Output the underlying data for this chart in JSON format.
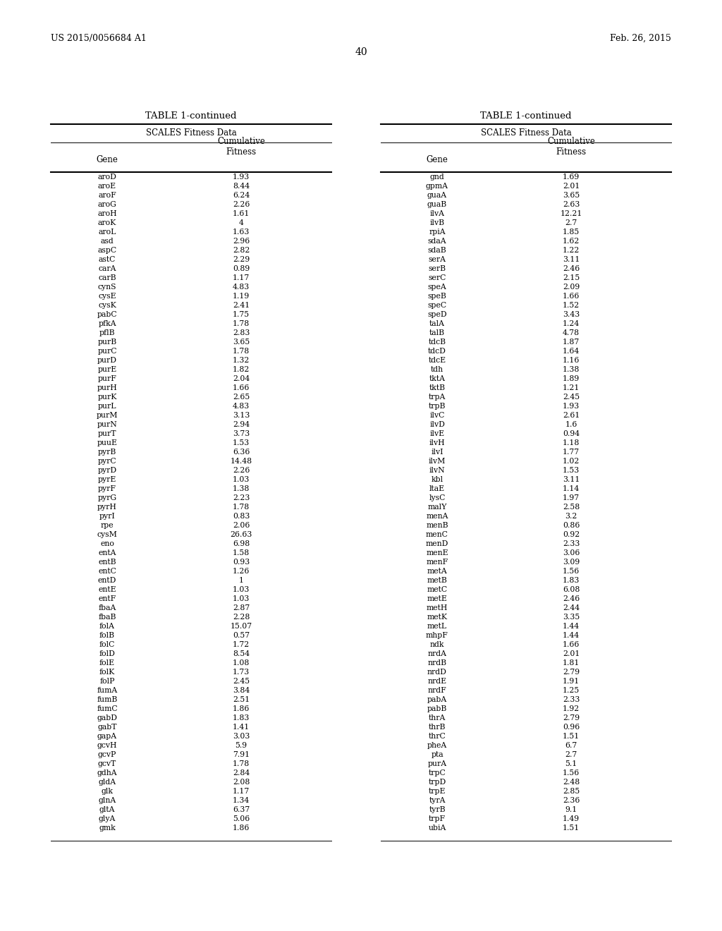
{
  "header_left": "US 2015/0056684 A1",
  "header_right": "Feb. 26, 2015",
  "page_number": "40",
  "table_title": "TABLE 1-continued",
  "table_subtitle": "SCALES Fitness Data",
  "col1_header": "Gene",
  "col2_header": "Cumulative\nFitness",
  "left_data": [
    [
      "aroD",
      "1.93"
    ],
    [
      "aroE",
      "8.44"
    ],
    [
      "aroF",
      "6.24"
    ],
    [
      "aroG",
      "2.26"
    ],
    [
      "aroH",
      "1.61"
    ],
    [
      "aroK",
      "4"
    ],
    [
      "aroL",
      "1.63"
    ],
    [
      "asd",
      "2.96"
    ],
    [
      "aspC",
      "2.82"
    ],
    [
      "astC",
      "2.29"
    ],
    [
      "carA",
      "0.89"
    ],
    [
      "carB",
      "1.17"
    ],
    [
      "cynS",
      "4.83"
    ],
    [
      "cysE",
      "1.19"
    ],
    [
      "cysK",
      "2.41"
    ],
    [
      "pabC",
      "1.75"
    ],
    [
      "pfkA",
      "1.78"
    ],
    [
      "pflB",
      "2.83"
    ],
    [
      "purB",
      "3.65"
    ],
    [
      "purC",
      "1.78"
    ],
    [
      "purD",
      "1.32"
    ],
    [
      "purE",
      "1.82"
    ],
    [
      "purF",
      "2.04"
    ],
    [
      "purH",
      "1.66"
    ],
    [
      "purK",
      "2.65"
    ],
    [
      "purL",
      "4.83"
    ],
    [
      "purM",
      "3.13"
    ],
    [
      "purN",
      "2.94"
    ],
    [
      "purT",
      "3.73"
    ],
    [
      "puuE",
      "1.53"
    ],
    [
      "pyrB",
      "6.36"
    ],
    [
      "pyrC",
      "14.48"
    ],
    [
      "pyrD",
      "2.26"
    ],
    [
      "pyrE",
      "1.03"
    ],
    [
      "pyrF",
      "1.38"
    ],
    [
      "pyrG",
      "2.23"
    ],
    [
      "pyrH",
      "1.78"
    ],
    [
      "pyrI",
      "0.83"
    ],
    [
      "rpe",
      "2.06"
    ],
    [
      "cysM",
      "26.63"
    ],
    [
      "eno",
      "6.98"
    ],
    [
      "entA",
      "1.58"
    ],
    [
      "entB",
      "0.93"
    ],
    [
      "entC",
      "1.26"
    ],
    [
      "entD",
      "1"
    ],
    [
      "entE",
      "1.03"
    ],
    [
      "entF",
      "1.03"
    ],
    [
      "fbaA",
      "2.87"
    ],
    [
      "fbaB",
      "2.28"
    ],
    [
      "folA",
      "15.07"
    ],
    [
      "folB",
      "0.57"
    ],
    [
      "folC",
      "1.72"
    ],
    [
      "folD",
      "8.54"
    ],
    [
      "folE",
      "1.08"
    ],
    [
      "folK",
      "1.73"
    ],
    [
      "folP",
      "2.45"
    ],
    [
      "fumA",
      "3.84"
    ],
    [
      "fumB",
      "2.51"
    ],
    [
      "fumC",
      "1.86"
    ],
    [
      "gabD",
      "1.83"
    ],
    [
      "gabT",
      "1.41"
    ],
    [
      "gapA",
      "3.03"
    ],
    [
      "gcvH",
      "5.9"
    ],
    [
      "gcvP",
      "7.91"
    ],
    [
      "gcvT",
      "1.78"
    ],
    [
      "gdhA",
      "2.84"
    ],
    [
      "gldA",
      "2.08"
    ],
    [
      "glk",
      "1.17"
    ],
    [
      "glnA",
      "1.34"
    ],
    [
      "gltA",
      "6.37"
    ],
    [
      "glyA",
      "5.06"
    ],
    [
      "gmk",
      "1.86"
    ]
  ],
  "right_data": [
    [
      "gnd",
      "1.69"
    ],
    [
      "gpmA",
      "2.01"
    ],
    [
      "guaA",
      "3.65"
    ],
    [
      "guaB",
      "2.63"
    ],
    [
      "ilvA",
      "12.21"
    ],
    [
      "ilvB",
      "2.7"
    ],
    [
      "rpiA",
      "1.85"
    ],
    [
      "sdaA",
      "1.62"
    ],
    [
      "sdaB",
      "1.22"
    ],
    [
      "serA",
      "3.11"
    ],
    [
      "serB",
      "2.46"
    ],
    [
      "serC",
      "2.15"
    ],
    [
      "speA",
      "2.09"
    ],
    [
      "speB",
      "1.66"
    ],
    [
      "speC",
      "1.52"
    ],
    [
      "speD",
      "3.43"
    ],
    [
      "talA",
      "1.24"
    ],
    [
      "talB",
      "4.78"
    ],
    [
      "tdcB",
      "1.87"
    ],
    [
      "tdcD",
      "1.64"
    ],
    [
      "tdcE",
      "1.16"
    ],
    [
      "tdh",
      "1.38"
    ],
    [
      "tktA",
      "1.89"
    ],
    [
      "tktB",
      "1.21"
    ],
    [
      "trpA",
      "2.45"
    ],
    [
      "trpB",
      "1.93"
    ],
    [
      "ilvC",
      "2.61"
    ],
    [
      "ilvD",
      "1.6"
    ],
    [
      "ilvE",
      "0.94"
    ],
    [
      "ilvH",
      "1.18"
    ],
    [
      "ilvI",
      "1.77"
    ],
    [
      "ilvM",
      "1.02"
    ],
    [
      "ilvN",
      "1.53"
    ],
    [
      "kbl",
      "3.11"
    ],
    [
      "ltaE",
      "1.14"
    ],
    [
      "lysC",
      "1.97"
    ],
    [
      "malY",
      "2.58"
    ],
    [
      "menA",
      "3.2"
    ],
    [
      "menB",
      "0.86"
    ],
    [
      "menC",
      "0.92"
    ],
    [
      "menD",
      "2.33"
    ],
    [
      "menE",
      "3.06"
    ],
    [
      "menF",
      "3.09"
    ],
    [
      "metA",
      "1.56"
    ],
    [
      "metB",
      "1.83"
    ],
    [
      "metC",
      "6.08"
    ],
    [
      "metE",
      "2.46"
    ],
    [
      "metH",
      "2.44"
    ],
    [
      "metK",
      "3.35"
    ],
    [
      "metL",
      "1.44"
    ],
    [
      "mhpF",
      "1.44"
    ],
    [
      "ndk",
      "1.66"
    ],
    [
      "nrdA",
      "2.01"
    ],
    [
      "nrdB",
      "1.81"
    ],
    [
      "nrdD",
      "2.79"
    ],
    [
      "nrdE",
      "1.91"
    ],
    [
      "nrdF",
      "1.25"
    ],
    [
      "pabA",
      "2.33"
    ],
    [
      "pabB",
      "1.92"
    ],
    [
      "thrA",
      "2.79"
    ],
    [
      "thrB",
      "0.96"
    ],
    [
      "thrC",
      "1.51"
    ],
    [
      "pheA",
      "6.7"
    ],
    [
      "pta",
      "2.7"
    ],
    [
      "purA",
      "5.1"
    ],
    [
      "trpC",
      "1.56"
    ],
    [
      "trpD",
      "2.48"
    ],
    [
      "trpE",
      "2.85"
    ],
    [
      "tyrA",
      "2.36"
    ],
    [
      "tyrB",
      "9.1"
    ],
    [
      "trpF",
      "1.49"
    ],
    [
      "ubiA",
      "1.51"
    ]
  ]
}
